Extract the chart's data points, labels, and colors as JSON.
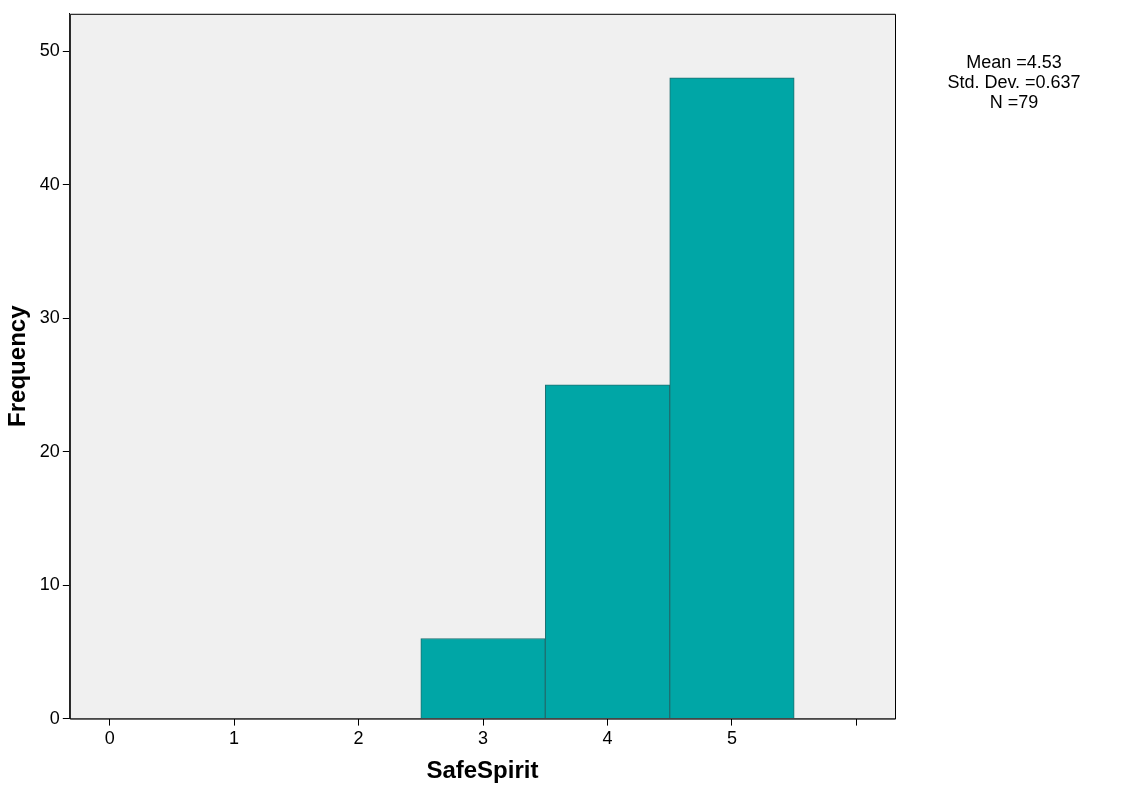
{
  "chart_data": {
    "type": "histogram",
    "xlabel": "SafeSpirit",
    "ylabel": "Frequency",
    "bins": [
      2.5,
      3.5,
      4.5,
      5.5
    ],
    "values": [
      6,
      25,
      48
    ],
    "color": "#00a6a6",
    "xlim": [
      -0.32,
      6.31
    ],
    "xticks": [
      0,
      1,
      2,
      3,
      4,
      5,
      {
        "value": 6,
        "label": null
      }
    ],
    "ylim": [
      0,
      52.8
    ],
    "yticks": [
      0,
      10,
      20,
      30,
      40,
      50
    ],
    "grid": false,
    "legend": false,
    "annotations": [
      "Mean =4.53",
      "Std. Dev. =0.637",
      "N =79"
    ]
  }
}
